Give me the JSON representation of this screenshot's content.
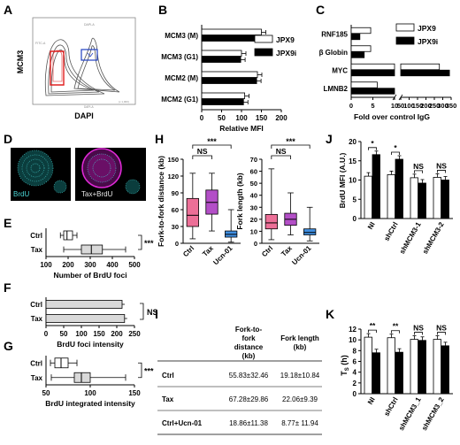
{
  "panel_letters": [
    "A",
    "B",
    "C",
    "D",
    "E",
    "F",
    "G",
    "H",
    "I",
    "J",
    "K"
  ],
  "panelA": {
    "ylabel": "MCM3",
    "xlabel": "DAPI",
    "tiny_x": "DAPI-A",
    "tiny_y": "FITC-A",
    "tiny_x2": "(x 1,000)"
  },
  "panelD": {
    "label_left": "BrdU",
    "label_right": "Tax+BrdU"
  },
  "colors": {
    "purple": "#b34fc7",
    "pink": "#ec6f97",
    "blue": "#3f8ee0",
    "gray": "#d9d9d9",
    "teal": "#4ad6d6",
    "magenta": "#e02ad7"
  },
  "chart_data": [
    {
      "panel": "B",
      "type": "bar",
      "orientation": "horizontal",
      "categories": [
        "MCM3 (M)",
        "MCM3 (G1)",
        "MCM2 (M)",
        "MCM2 (G1)"
      ],
      "series": [
        {
          "name": "JPX9",
          "values": [
            150,
            100,
            140,
            108
          ]
        },
        {
          "name": "JPX9i",
          "values": [
            140,
            98,
            138,
            105
          ]
        }
      ],
      "xlabel": "Relative MFI",
      "xlim": [
        0,
        200
      ],
      "ticks": [
        "0",
        "50",
        "100",
        "150",
        "200"
      ]
    },
    {
      "panel": "C",
      "type": "bar",
      "orientation": "horizontal",
      "broken_axis": true,
      "categories": [
        "RNF185",
        "β Globin",
        "MYC",
        "LMNB2"
      ],
      "series": [
        {
          "name": "JPX9",
          "values": [
            4.5,
            4.5,
            280,
            6
          ]
        },
        {
          "name": "JPX9i",
          "values": [
            2,
            3,
            340,
            10
          ]
        }
      ],
      "xlabel": "Fold over control IgG",
      "ticks": [
        "0",
        "5",
        "10",
        "50",
        "100",
        "150",
        "200",
        "250",
        "300",
        "350"
      ]
    },
    {
      "panel": "E",
      "type": "boxplot",
      "categories": [
        "Ctrl",
        "Tax"
      ],
      "boxes": [
        {
          "min": 165,
          "q1": 180,
          "median": 195,
          "q3": 220,
          "max": 240
        },
        {
          "min": 180,
          "q1": 260,
          "median": 305,
          "q3": 355,
          "max": 460
        }
      ],
      "xlabel": "Number of BrdU foci",
      "xlim": [
        100,
        500
      ],
      "ticks": [
        "100",
        "200",
        "300",
        "400",
        "500"
      ],
      "sig": "***"
    },
    {
      "panel": "F",
      "type": "bar",
      "orientation": "horizontal",
      "categories": [
        "Ctrl",
        "Tax"
      ],
      "values": [
        215,
        222
      ],
      "xlabel": "BrdU foci intensity",
      "xlim": [
        0,
        250
      ],
      "ticks": [
        "0",
        "50",
        "100",
        "150",
        "200",
        "250"
      ],
      "sig": "NS"
    },
    {
      "panel": "G",
      "type": "boxplot",
      "categories": [
        "Ctrl",
        "Tax"
      ],
      "boxes": [
        {
          "min": 55,
          "q1": 60,
          "median": 67,
          "q3": 75,
          "max": 85
        },
        {
          "min": 56,
          "q1": 82,
          "median": 90,
          "q3": 100,
          "max": 140
        }
      ],
      "xlabel": "BrdU integrated intensity",
      "xlim": [
        50,
        150
      ],
      "ticks": [
        "50",
        "100",
        "150"
      ],
      "sig": "***"
    },
    {
      "panel": "H1",
      "type": "boxplot",
      "categories": [
        "Ctrl",
        "Tax",
        "Ucn-01"
      ],
      "boxes": [
        {
          "min": 8,
          "q1": 30,
          "median": 50,
          "q3": 80,
          "max": 125
        },
        {
          "min": 22,
          "q1": 52,
          "median": 73,
          "q3": 95,
          "max": 125
        },
        {
          "min": 2,
          "q1": 11,
          "median": 16,
          "q3": 22,
          "max": 60
        }
      ],
      "ylabel": "Fork-to-fork distance (kb)",
      "ylim": [
        0,
        150
      ],
      "ticks": [
        "0",
        "30",
        "60",
        "90",
        "120",
        "150"
      ],
      "sig": [
        "NS",
        "***"
      ]
    },
    {
      "panel": "H2",
      "type": "boxplot",
      "categories": [
        "Ctrl",
        "Tax",
        "Ucn-01"
      ],
      "boxes": [
        {
          "min": 3,
          "q1": 12,
          "median": 17,
          "q3": 24,
          "max": 62
        },
        {
          "min": 7,
          "q1": 15,
          "median": 20,
          "q3": 25,
          "max": 42
        },
        {
          "min": 2,
          "q1": 7,
          "median": 9,
          "q3": 12,
          "max": 30
        }
      ],
      "ylabel": "Fork length (kb)",
      "ylim": [
        0,
        70
      ],
      "ticks": [
        "0",
        "10",
        "20",
        "30",
        "40",
        "50",
        "60",
        "70"
      ],
      "sig": [
        "NS",
        "***"
      ]
    },
    {
      "panel": "J",
      "type": "bar",
      "categories": [
        "NI",
        "shCtrl",
        "shMCM3-1",
        "shMCM3-2"
      ],
      "series": [
        {
          "name": "open",
          "values": [
            11,
            11.4,
            10.6,
            10.7
          ]
        },
        {
          "name": "filled",
          "values": [
            16.6,
            15.4,
            9.2,
            10
          ]
        }
      ],
      "ylabel": "BrdU MFI (A.U.)",
      "ylim": [
        0,
        20
      ],
      "ticks": [
        "0",
        "5",
        "10",
        "15",
        "20"
      ],
      "sig": [
        "*",
        "*",
        "NS",
        "NS"
      ]
    },
    {
      "panel": "K",
      "type": "bar",
      "categories": [
        "NI",
        "shCtrl",
        "shMCM3_1",
        "shMCM3_2"
      ],
      "series": [
        {
          "name": "open",
          "values": [
            10.5,
            10.4,
            10.1,
            10.1
          ]
        },
        {
          "name": "filled",
          "values": [
            7.6,
            7.7,
            9.9,
            8.9
          ]
        }
      ],
      "ylabel": "TS (h)",
      "ylim": [
        0,
        12
      ],
      "ticks": [
        "0",
        "2",
        "4",
        "6",
        "8",
        "10",
        "12"
      ],
      "sig": [
        "**",
        "**",
        "NS",
        "NS"
      ]
    }
  ],
  "tableI": {
    "headers": [
      "",
      "Fork-to-fork distance (kb)",
      "Fork length (kb)"
    ],
    "header2_line1": "Fork-to-",
    "header2_line2": "fork",
    "header2_line3": "distance",
    "header2_line4": "(kb)",
    "header3_line1": "Fork length",
    "header3_line2": "(kb)",
    "rows": [
      [
        "Ctrl",
        "55.83±32.46",
        "19.18±10.84"
      ],
      [
        "Tax",
        "67.28±29.86",
        "22.06±9.39"
      ],
      [
        "Ctrl+Ucn-01",
        "18.86±11.38",
        "8.77± 11.94"
      ]
    ]
  }
}
